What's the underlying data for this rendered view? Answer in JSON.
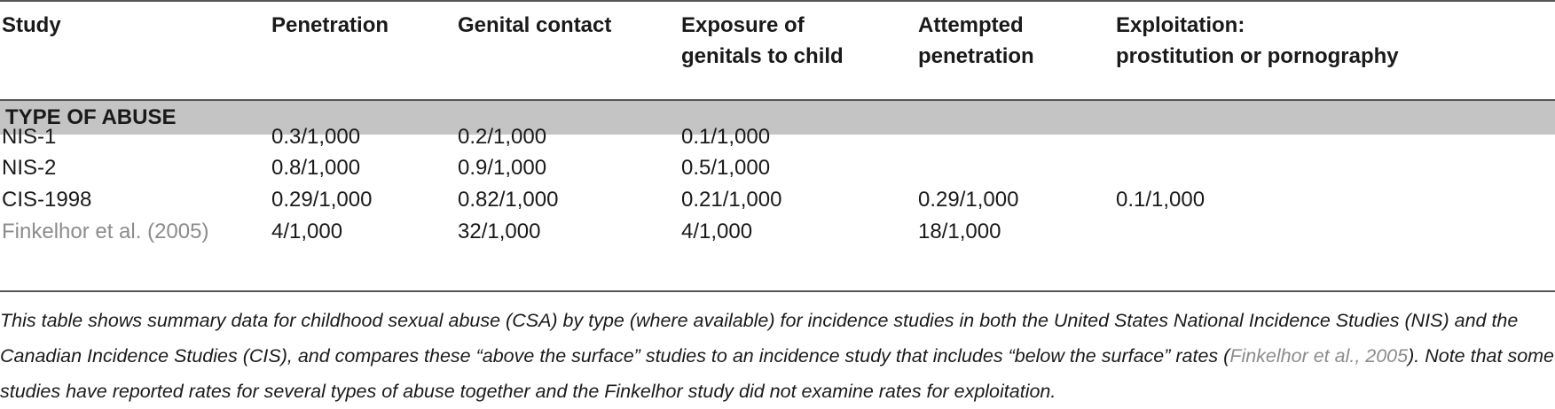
{
  "table": {
    "headers": [
      [
        "Study"
      ],
      [
        "Penetration"
      ],
      [
        "Genital contact"
      ],
      [
        "Exposure of",
        "genitals to child"
      ],
      [
        "Attempted",
        "penetration"
      ],
      [
        "Exploitation:",
        "prostitution or pornography"
      ]
    ],
    "section_label": "TYPE OF ABUSE",
    "rows": [
      {
        "study": "NIS-1",
        "penetration": "0.3/1,000",
        "genital_contact": "0.2/1,000",
        "exposure": "0.1/1,000",
        "attempted": "",
        "exploitation": ""
      },
      {
        "study": "NIS-2",
        "penetration": "0.8/1,000",
        "genital_contact": "0.9/1,000",
        "exposure": "0.5/1,000",
        "attempted": "",
        "exploitation": ""
      },
      {
        "study": "CIS-1998",
        "penetration": "0.29/1,000",
        "genital_contact": "0.82/1,000",
        "exposure": "0.21/1,000",
        "attempted": "0.29/1,000",
        "exploitation": "0.1/1,000"
      },
      {
        "study": "Finkelhor et al. (2005)",
        "penetration": "4/1,000",
        "genital_contact": "32/1,000",
        "exposure": "4/1,000",
        "attempted": "18/1,000",
        "exploitation": ""
      }
    ]
  },
  "caption": {
    "part1": "This table shows summary data for childhood sexual abuse (CSA) by type (where available) for incidence studies in both the United States National Incidence Studies (NIS) and the Canadian Incidence Studies (CIS), and compares these “above the surface” studies to an incidence study that includes “below the surface” rates (",
    "link": "Finkelhor et al., 2005",
    "part2": "). Note that some studies have reported rates for several types of abuse together and the Finkelhor study did not examine rates for exploitation."
  },
  "colors": {
    "rule": "#555555",
    "section_band": "#c4c4c4",
    "link_text": "#8c8c8c",
    "text": "#1a1a1a"
  }
}
